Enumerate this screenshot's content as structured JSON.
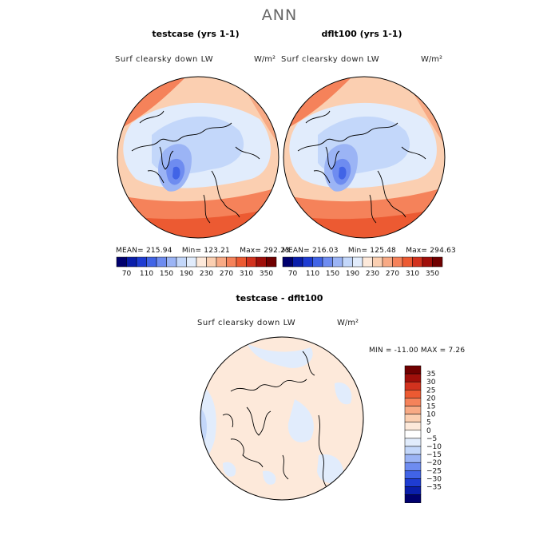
{
  "page_title": "ANN",
  "chart_data": [
    {
      "type": "heatmap",
      "projection": "north polar stereographic",
      "title": "testcase (yrs 1-1)",
      "variable": "Surf clearsky down LW",
      "units": "W/m²",
      "stats": {
        "mean": "MEAN= 215.94",
        "min": "Min= 123.21",
        "max": "Max= 292.23"
      },
      "colorbar": {
        "orientation": "horizontal",
        "colors": [
          "#00006e",
          "#0a1eaa",
          "#1e3cd2",
          "#4164e6",
          "#6e8cf0",
          "#9bb4f5",
          "#c3d7fa",
          "#e1ecfc",
          "#fde9da",
          "#fbcfb1",
          "#f8aa85",
          "#f5825a",
          "#ec5a32",
          "#d2321e",
          "#a00f0a",
          "#700000"
        ],
        "tick_labels": [
          "70",
          "110",
          "150",
          "190",
          "230",
          "270",
          "310",
          "350"
        ]
      }
    },
    {
      "type": "heatmap",
      "projection": "north polar stereographic",
      "title": "dflt100 (yrs 1-1)",
      "variable": "Surf clearsky down LW",
      "units": "W/m²",
      "stats": {
        "mean": "MEAN= 216.03",
        "min": "Min= 125.48",
        "max": "Max= 294.63"
      },
      "colorbar": {
        "orientation": "horizontal",
        "colors": [
          "#00006e",
          "#0a1eaa",
          "#1e3cd2",
          "#4164e6",
          "#6e8cf0",
          "#9bb4f5",
          "#c3d7fa",
          "#e1ecfc",
          "#fde9da",
          "#fbcfb1",
          "#f8aa85",
          "#f5825a",
          "#ec5a32",
          "#d2321e",
          "#a00f0a",
          "#700000"
        ],
        "tick_labels": [
          "70",
          "110",
          "150",
          "190",
          "230",
          "270",
          "310",
          "350"
        ]
      }
    },
    {
      "type": "heatmap",
      "projection": "north polar stereographic",
      "title": "testcase - dflt100",
      "variable": "Surf clearsky down LW",
      "units": "W/m²",
      "stats": {
        "range": "MIN = -11.00 MAX =    7.26"
      },
      "colorbar": {
        "orientation": "vertical",
        "colors": [
          "#700000",
          "#a00f0a",
          "#d2321e",
          "#ec5a32",
          "#f5825a",
          "#f8aa85",
          "#fbcfb1",
          "#fde9da",
          "#ffffff",
          "#e1ecfc",
          "#c3d7fa",
          "#9bb4f5",
          "#6e8cf0",
          "#4164e6",
          "#1e3cd2",
          "#0a1eaa",
          "#00006e"
        ],
        "tick_labels": [
          "35",
          "30",
          "25",
          "20",
          "15",
          "10",
          "5",
          "0",
          "−5",
          "−10",
          "−15",
          "−20",
          "−25",
          "−30",
          "−35"
        ]
      }
    }
  ]
}
